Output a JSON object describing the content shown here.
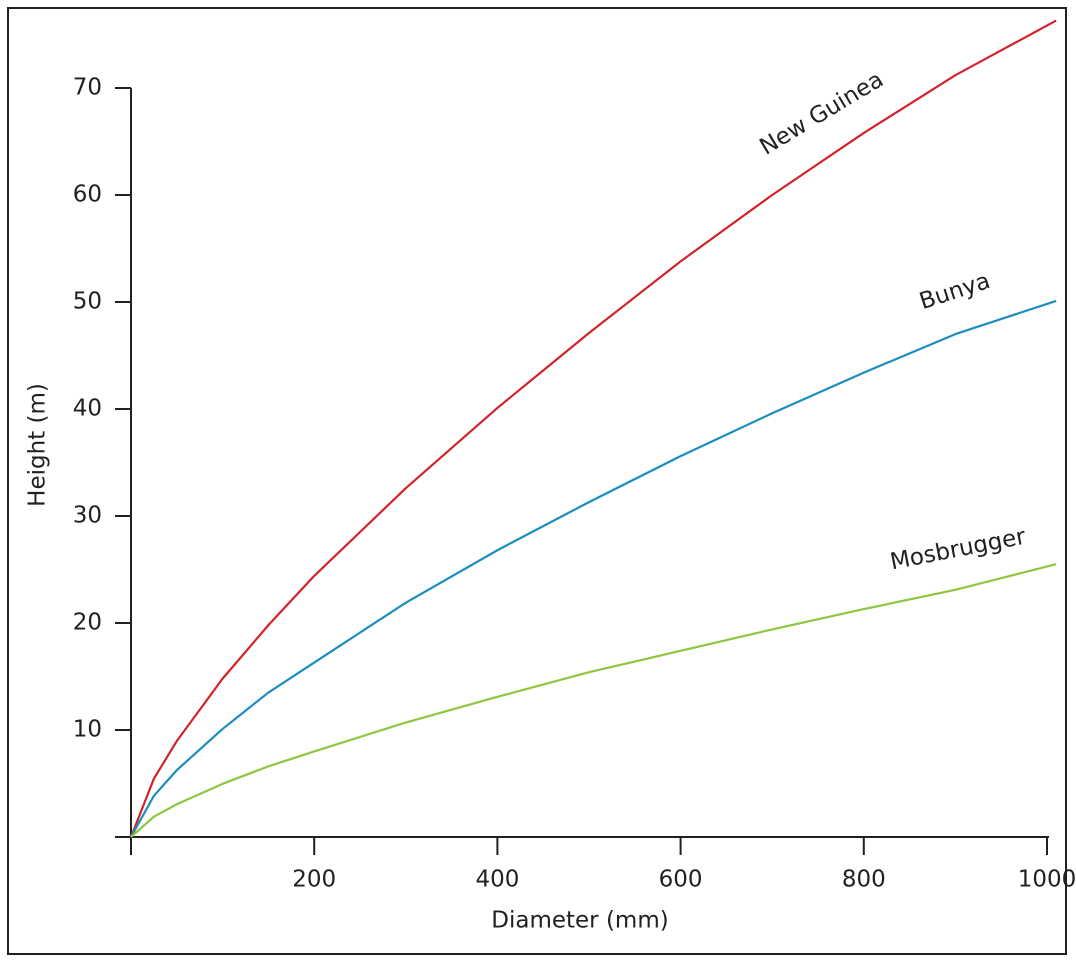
{
  "chart_data": {
    "type": "line",
    "x_label": "Diameter (mm)",
    "y_label": "Height (m)",
    "x": [
      0,
      25,
      50,
      100,
      150,
      200,
      300,
      400,
      500,
      600,
      700,
      800,
      900,
      1010
    ],
    "series": [
      {
        "name": "New Guinea",
        "color": "#d2232a",
        "values": [
          0,
          5.45,
          8.97,
          14.8,
          19.8,
          24.4,
          32.6,
          40.1,
          47.1,
          53.8,
          60.0,
          65.8,
          71.2,
          76.3
        ]
      },
      {
        "name": "Bunya",
        "color": "#1b8ebf",
        "values": [
          0,
          3.85,
          6.25,
          10.1,
          13.5,
          16.3,
          21.9,
          26.8,
          31.3,
          35.6,
          39.6,
          43.4,
          47.0,
          50.1
        ]
      },
      {
        "name": "Mosbrugger",
        "color": "#8dc63f",
        "values": [
          0,
          1.9,
          3.06,
          4.97,
          6.6,
          8.0,
          10.7,
          13.1,
          15.4,
          17.4,
          19.4,
          21.3,
          23.1,
          25.5
        ]
      }
    ],
    "xlim": [
      0,
      1000
    ],
    "ylim": [
      0,
      70
    ],
    "xticks": [
      200,
      400,
      600,
      800,
      1000
    ],
    "yticks": [
      10,
      20,
      30,
      40,
      50,
      60,
      70
    ],
    "grid": false
  }
}
